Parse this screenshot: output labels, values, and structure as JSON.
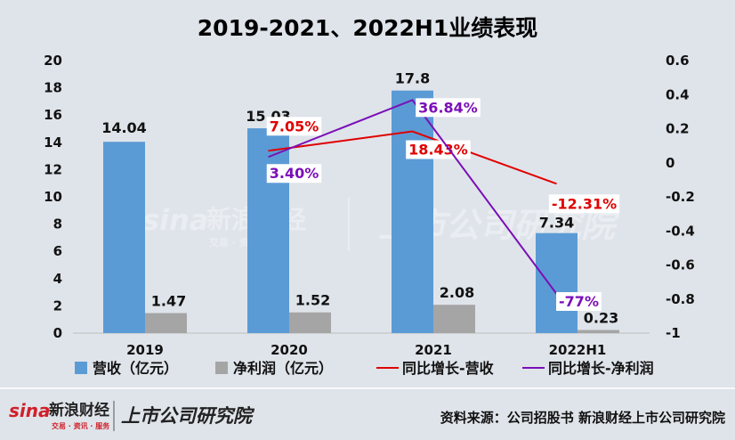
{
  "colors": {
    "revenue": "#5b9bd5",
    "profit": "#a5a5a5",
    "rev_growth": "#e00000",
    "profit_growth": "#7b0fb8",
    "background": "#dfe4ea",
    "logo_red": "#d0202a"
  },
  "chart_data": {
    "type": "bar",
    "title": "2019-2021、2022H1业绩表现",
    "categories": [
      "2019",
      "2020",
      "2021",
      "2022H1"
    ],
    "bar_series": [
      {
        "name": "营收（亿元）",
        "values": [
          14.04,
          15.03,
          17.8,
          7.34
        ],
        "labels": [
          "14.04",
          "15.03",
          "17.8",
          "7.34"
        ]
      },
      {
        "name": "净利润（亿元）",
        "values": [
          1.47,
          1.52,
          2.08,
          0.23
        ],
        "labels": [
          "1.47",
          "1.52",
          "2.08",
          "0.23"
        ]
      }
    ],
    "line_series": [
      {
        "name": "同比增长-营收",
        "x": [
          "2020",
          "2021",
          "2022H1"
        ],
        "values": [
          0.0705,
          0.1843,
          -0.1231
        ],
        "labels": [
          "7.05%",
          "18.43%",
          "-12.31%"
        ]
      },
      {
        "name": "同比增长-净利润",
        "x": [
          "2020",
          "2021",
          "2022H1"
        ],
        "values": [
          0.034,
          0.3684,
          -0.77
        ],
        "labels": [
          "3.40%",
          "36.84%",
          "-77%"
        ]
      }
    ],
    "y_left": {
      "min": 0,
      "max": 20,
      "ticks": [
        "0",
        "2",
        "4",
        "6",
        "8",
        "10",
        "12",
        "14",
        "16",
        "18",
        "20"
      ]
    },
    "y_right": {
      "min": -1,
      "max": 0.6,
      "ticks": [
        "-1",
        "-0.8",
        "-0.6",
        "-0.4",
        "-0.2",
        "0",
        "0.2",
        "0.4",
        "0.6"
      ]
    },
    "legend_position": "bottom",
    "grid": false
  },
  "watermark": {
    "brand": "sina",
    "name": "新浪财经",
    "sub": "交易 · 资讯 · 服务",
    "section": "上市公司研究院"
  },
  "footer": {
    "logo_brand": "sina",
    "logo_name": "新浪财经",
    "logo_sub": "交易 · 资讯 · 服务",
    "logo_section": "上市公司研究院",
    "source": "资料来源：公司招股书 新浪财经上市公司研究院"
  }
}
